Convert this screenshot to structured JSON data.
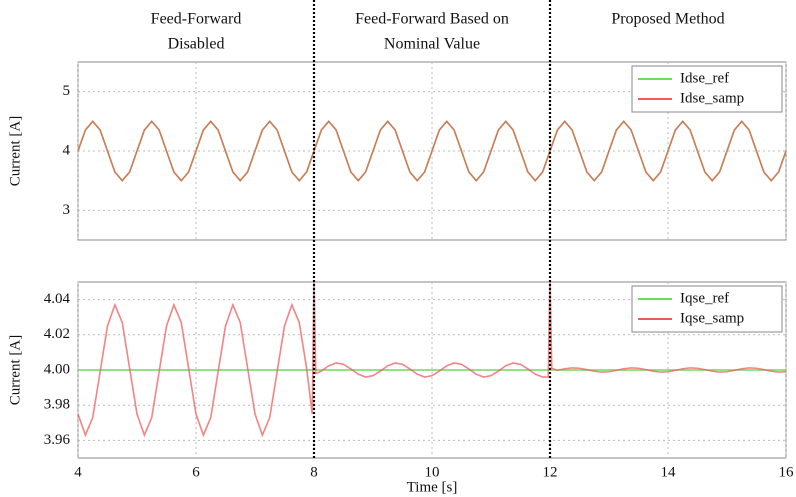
{
  "section_titles": [
    [
      "Feed-Forward",
      "Disabled"
    ],
    [
      "Feed-Forward Based on",
      "Nominal Value"
    ],
    [
      "Proposed Method"
    ]
  ],
  "dividers": [
    8,
    12
  ],
  "chart_data": [
    {
      "type": "line",
      "ylabel": "Current [A]",
      "xlim": [
        4,
        16
      ],
      "ylim": [
        2.5,
        5.5
      ],
      "xticks": [
        4,
        6,
        8,
        10,
        12,
        14,
        16
      ],
      "yticks": [
        3,
        4,
        5
      ],
      "grid": true,
      "legend": "upper right",
      "x": [
        4,
        4.125,
        4.25,
        4.375,
        4.5,
        4.625,
        4.75,
        4.875,
        5,
        5.125,
        5.25,
        5.375,
        5.5,
        5.625,
        5.75,
        5.875,
        6,
        6.125,
        6.25,
        6.375,
        6.5,
        6.625,
        6.75,
        6.875,
        7,
        7.125,
        7.25,
        7.375,
        7.5,
        7.625,
        7.75,
        7.875,
        8,
        8.125,
        8.25,
        8.375,
        8.5,
        8.625,
        8.75,
        8.875,
        9,
        9.125,
        9.25,
        9.375,
        9.5,
        9.625,
        9.75,
        9.875,
        10,
        10.125,
        10.25,
        10.375,
        10.5,
        10.625,
        10.75,
        10.875,
        11,
        11.125,
        11.25,
        11.375,
        11.5,
        11.625,
        11.75,
        11.875,
        12,
        12.125,
        12.25,
        12.375,
        12.5,
        12.625,
        12.75,
        12.875,
        13,
        13.125,
        13.25,
        13.375,
        13.5,
        13.625,
        13.75,
        13.875,
        14,
        14.125,
        14.25,
        14.375,
        14.5,
        14.625,
        14.75,
        14.875,
        15,
        15.125,
        15.25,
        15.375,
        15.5,
        15.625,
        15.75,
        15.875,
        16
      ],
      "series": [
        {
          "name": "Idse_ref",
          "color": "#6fdc5a",
          "values": [
            4,
            4.354,
            4.5,
            4.354,
            4,
            3.646,
            3.5,
            3.646,
            4,
            4.354,
            4.5,
            4.354,
            4,
            3.646,
            3.5,
            3.646,
            4,
            4.354,
            4.5,
            4.354,
            4,
            3.646,
            3.5,
            3.646,
            4,
            4.354,
            4.5,
            4.354,
            4,
            3.646,
            3.5,
            3.646,
            4,
            4.354,
            4.5,
            4.354,
            4,
            3.646,
            3.5,
            3.646,
            4,
            4.354,
            4.5,
            4.354,
            4,
            3.646,
            3.5,
            3.646,
            4,
            4.354,
            4.5,
            4.354,
            4,
            3.646,
            3.5,
            3.646,
            4,
            4.354,
            4.5,
            4.354,
            4,
            3.646,
            3.5,
            3.646,
            4,
            4.354,
            4.5,
            4.354,
            4,
            3.646,
            3.5,
            3.646,
            4,
            4.354,
            4.5,
            4.354,
            4,
            3.646,
            3.5,
            3.646,
            4,
            4.354,
            4.5,
            4.354,
            4,
            3.646,
            3.5,
            3.646,
            4,
            4.354,
            4.5,
            4.354,
            4,
            3.646,
            3.5,
            3.646,
            4
          ]
        },
        {
          "name": "Idse_samp",
          "color": "#f05a5a",
          "values": [
            4,
            4.354,
            4.5,
            4.354,
            4,
            3.646,
            3.5,
            3.646,
            4,
            4.354,
            4.5,
            4.354,
            4,
            3.646,
            3.5,
            3.646,
            4,
            4.354,
            4.5,
            4.354,
            4,
            3.646,
            3.5,
            3.646,
            4,
            4.354,
            4.5,
            4.354,
            4,
            3.646,
            3.5,
            3.646,
            4,
            4.354,
            4.5,
            4.354,
            4,
            3.646,
            3.5,
            3.646,
            4,
            4.354,
            4.5,
            4.354,
            4,
            3.646,
            3.5,
            3.646,
            4,
            4.354,
            4.5,
            4.354,
            4,
            3.646,
            3.5,
            3.646,
            4,
            4.354,
            4.5,
            4.354,
            4,
            3.646,
            3.5,
            3.646,
            4,
            4.354,
            4.5,
            4.354,
            4,
            3.646,
            3.5,
            3.646,
            4,
            4.354,
            4.5,
            4.354,
            4,
            3.646,
            3.5,
            3.646,
            4,
            4.354,
            4.5,
            4.354,
            4,
            3.646,
            3.5,
            3.646,
            4,
            4.354,
            4.5,
            4.354,
            4,
            3.646,
            3.5,
            3.646,
            4
          ]
        }
      ]
    },
    {
      "type": "line",
      "ylabel": "Current [A]",
      "xlabel": "Time [s]",
      "xlim": [
        4,
        16
      ],
      "ylim": [
        3.95,
        4.05
      ],
      "xticks": [
        4,
        6,
        8,
        10,
        12,
        14,
        16
      ],
      "yticks": [
        3.96,
        3.98,
        {
          "value": 4,
          "label": "4.00"
        },
        4.02,
        4.04
      ],
      "grid": true,
      "legend": "upper right",
      "x": [
        4,
        4.125,
        4.25,
        4.375,
        4.5,
        4.625,
        4.75,
        4.875,
        5,
        5.125,
        5.25,
        5.375,
        5.5,
        5.625,
        5.75,
        5.875,
        6,
        6.125,
        6.25,
        6.375,
        6.5,
        6.625,
        6.75,
        6.875,
        7,
        7.125,
        7.25,
        7.375,
        7.5,
        7.625,
        7.75,
        7.875,
        7.97,
        8,
        8.03,
        8.125,
        8.25,
        8.375,
        8.5,
        8.625,
        8.75,
        8.875,
        9,
        9.125,
        9.25,
        9.375,
        9.5,
        9.625,
        9.75,
        9.875,
        10,
        10.125,
        10.25,
        10.375,
        10.5,
        10.625,
        10.75,
        10.875,
        11,
        11.125,
        11.25,
        11.375,
        11.5,
        11.625,
        11.75,
        11.875,
        11.97,
        12,
        12.03,
        12.125,
        12.25,
        12.375,
        12.5,
        12.625,
        12.75,
        12.875,
        13,
        13.125,
        13.25,
        13.375,
        13.5,
        13.625,
        13.75,
        13.875,
        14,
        14.125,
        14.25,
        14.375,
        14.5,
        14.625,
        14.75,
        14.875,
        15,
        15.125,
        15.25,
        15.375,
        15.5,
        15.625,
        15.75,
        15.875,
        16
      ],
      "series": [
        {
          "name": "Iqse_ref",
          "color": "#6fdc5a",
          "x": [
            4,
            16
          ],
          "values": [
            4,
            4
          ]
        },
        {
          "name": "Iqse_samp",
          "color": "#f05a5a",
          "values": [
            3.975,
            3.963,
            3.973,
            3.999,
            4.025,
            4.037,
            4.027,
            4.001,
            3.975,
            3.963,
            3.973,
            3.999,
            4.025,
            4.037,
            4.027,
            4.001,
            3.975,
            3.963,
            3.973,
            3.999,
            4.025,
            4.037,
            4.027,
            4.001,
            3.975,
            3.963,
            3.973,
            3.999,
            4.025,
            4.037,
            4.027,
            4.001,
            3.975,
            4.05,
            3.998,
            3.9994,
            4.0024,
            4.004,
            4.0032,
            4.0006,
            3.9976,
            3.996,
            3.9968,
            3.9994,
            4.0024,
            4.004,
            4.0032,
            4.0006,
            3.9976,
            3.996,
            3.9968,
            3.9994,
            4.0024,
            4.004,
            4.0032,
            4.0006,
            3.9976,
            3.996,
            3.9968,
            3.9994,
            4.0024,
            4.004,
            4.0032,
            4.0006,
            3.9976,
            3.996,
            3.996,
            4.05,
            4.001,
            3.9998,
            4.0007,
            4.0012,
            4.001,
            4.0002,
            3.9993,
            3.9988,
            3.999,
            3.9998,
            4.0007,
            4.0012,
            4.001,
            4.0002,
            3.9993,
            3.9988,
            3.999,
            3.9998,
            4.0007,
            4.0012,
            4.001,
            4.0002,
            3.9993,
            3.9988,
            3.999,
            3.9998,
            4.0007,
            4.0012,
            4.001,
            4.0002,
            3.9993,
            3.9988,
            3.999
          ]
        }
      ]
    }
  ]
}
